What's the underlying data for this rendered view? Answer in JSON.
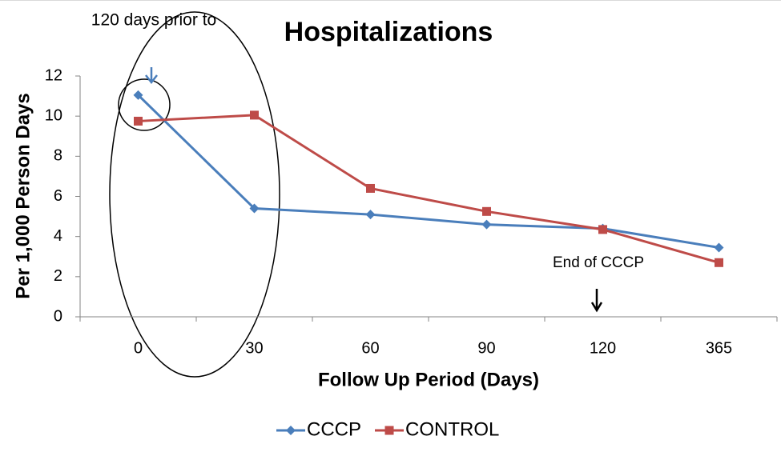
{
  "chart_data": {
    "type": "line",
    "title": "Hospitalizations",
    "x_label": "Follow Up Period (Days)",
    "y_label": "Per 1,000 Person Days",
    "categories": [
      "0",
      "30",
      "60",
      "90",
      "120",
      "365"
    ],
    "series": [
      {
        "name": "CCCP",
        "color": "#4a7ebb",
        "marker": "diamond",
        "values": [
          11.05,
          5.4,
          5.1,
          4.6,
          4.4,
          3.45
        ]
      },
      {
        "name": "CONTROL",
        "color": "#be4b48",
        "marker": "square",
        "values": [
          9.75,
          10.05,
          6.4,
          5.25,
          4.35,
          2.7
        ]
      }
    ],
    "ylim": [
      0,
      12
    ],
    "yticks": [
      0,
      2,
      4,
      6,
      8,
      10,
      12
    ],
    "legend": "bottom",
    "annotations": [
      "120 days prior to",
      "End of CCCP"
    ]
  }
}
